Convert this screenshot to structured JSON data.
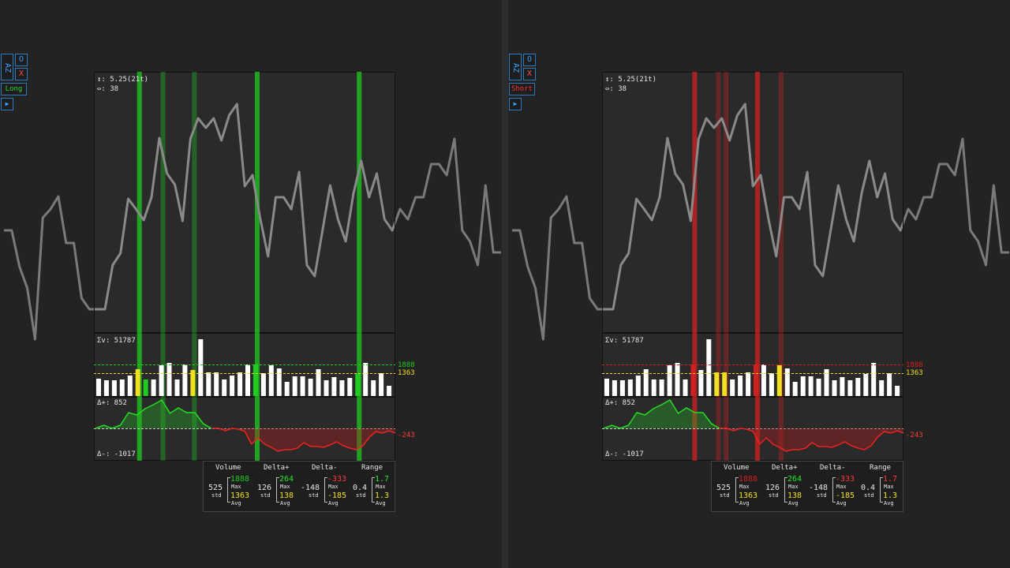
{
  "bg_series": [
    292,
    292,
    338,
    365,
    430,
    276,
    265,
    249,
    308,
    308,
    378,
    392,
    392,
    392,
    336,
    321,
    252,
    265,
    279,
    250,
    175,
    220,
    234,
    280,
    176,
    150,
    162,
    150,
    178,
    146,
    132,
    236,
    222,
    277,
    325,
    250,
    250,
    265,
    218,
    336,
    350,
    293,
    235,
    278,
    306,
    245,
    204,
    250,
    220,
    278,
    292,
    265,
    278,
    250,
    250,
    208,
    208,
    222,
    176,
    292,
    306,
    336,
    235,
    320,
    320
  ],
  "colors": {
    "long": "#1fcc1f",
    "short": "#d12020",
    "yellow": "#f0e020",
    "line": "#7a7a7a",
    "accent": "#3aa0ff"
  },
  "volume_bars": [
    22,
    20,
    20,
    21,
    26,
    34,
    21,
    21,
    39,
    42,
    21,
    40,
    33,
    72,
    30,
    30,
    21,
    26,
    30,
    40,
    40,
    29,
    39,
    35,
    18,
    25,
    25,
    22,
    34,
    20,
    24,
    20,
    23,
    28,
    42,
    20,
    29,
    13
  ],
  "delta_plus": [
    0,
    4,
    0,
    4,
    20,
    17,
    25,
    30,
    36,
    19,
    26,
    20,
    20,
    6,
    0
  ],
  "delta_minus": [
    0,
    0,
    3,
    0,
    1,
    4,
    20,
    12,
    20,
    24,
    29,
    27,
    27,
    25,
    18,
    23,
    23,
    24,
    21,
    17,
    22,
    25,
    27,
    22,
    11,
    4,
    6,
    3,
    6
  ],
  "left": {
    "mode_label": "Long",
    "mode_color": "#1fcc1f",
    "highlights": [
      {
        "bar": 5,
        "color": "#f0e020"
      },
      {
        "bar": 6,
        "color": "#1fcc1f"
      },
      {
        "bar": 12,
        "color": "#f0e020"
      },
      {
        "bar": 20,
        "color": "#1fcc1f"
      },
      {
        "bar": 33,
        "color": "#1fcc1f"
      }
    ],
    "vlines": [
      {
        "i": 5.2,
        "bright": true
      },
      {
        "i": 8.2,
        "bright": false
      },
      {
        "i": 12.2,
        "bright": false
      },
      {
        "i": 20.2,
        "bright": true
      },
      {
        "i": 33.2,
        "bright": true
      }
    ]
  },
  "right": {
    "mode_label": "Short",
    "mode_color": "#d12020",
    "highlights": [
      {
        "bar": 11,
        "color": "#d12020"
      },
      {
        "bar": 14,
        "color": "#f0e020"
      },
      {
        "bar": 15,
        "color": "#f0e020"
      },
      {
        "bar": 19,
        "color": "#d12020"
      },
      {
        "bar": 22,
        "color": "#f0e020"
      }
    ],
    "vlines": [
      {
        "i": 11.2,
        "bright": true
      },
      {
        "i": 14.2,
        "bright": false
      },
      {
        "i": 15.2,
        "bright": false
      },
      {
        "i": 19.2,
        "bright": true
      },
      {
        "i": 22.2,
        "bright": false
      }
    ]
  },
  "panel": {
    "range_label": "↕: 5.25(21t)",
    "count_label": "⇔: 38",
    "sum_volume_label": "Σv: 51787",
    "delta_plus_label": "Δ+: 852",
    "delta_minus_label": "Δ-: -1017",
    "level_max": "1888",
    "level_avg": "1363",
    "delta_level": "-243"
  },
  "controls": {
    "az": "AZ",
    "o": "O",
    "x": "X",
    "play": "▶"
  },
  "stats": {
    "headers": [
      "Volume",
      "Delta+",
      "Delta-",
      "Range"
    ],
    "sub_std": "std",
    "sub_max": "Max",
    "sub_avg": "Avg",
    "volume": {
      "std": "525",
      "max": "1888",
      "avg": "1363"
    },
    "delta_plus": {
      "std": "126",
      "max": "264",
      "avg": "138"
    },
    "delta_minus": {
      "std": "-148",
      "max": "-333",
      "avg": "-185"
    },
    "range": {
      "std": "0.4",
      "max": "1.7",
      "avg": "1.3"
    }
  }
}
